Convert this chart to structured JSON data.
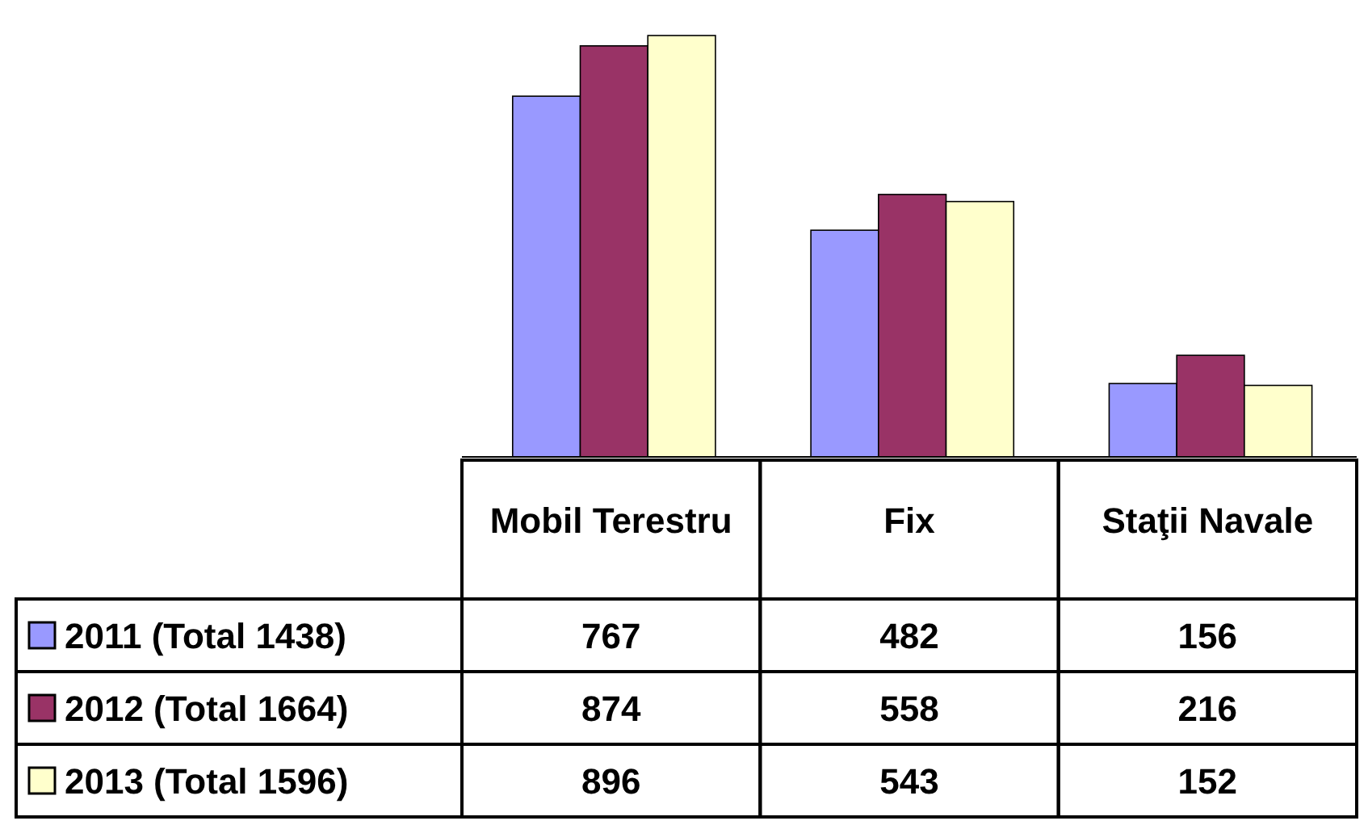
{
  "chart_data": {
    "type": "bar",
    "categories": [
      "Mobil Terestru",
      "Fix",
      "Staţii Navale"
    ],
    "series": [
      {
        "name": "2011 (Total 1438)",
        "color": "#9999ff",
        "values": [
          767,
          482,
          156
        ]
      },
      {
        "name": "2012 (Total 1664)",
        "color": "#993366",
        "values": [
          874,
          558,
          216
        ]
      },
      {
        "name": "2013 (Total 1596)",
        "color": "#ffffcc",
        "values": [
          896,
          543,
          152
        ]
      }
    ],
    "data_labels": true,
    "legend": "bottom left",
    "grid": false
  }
}
